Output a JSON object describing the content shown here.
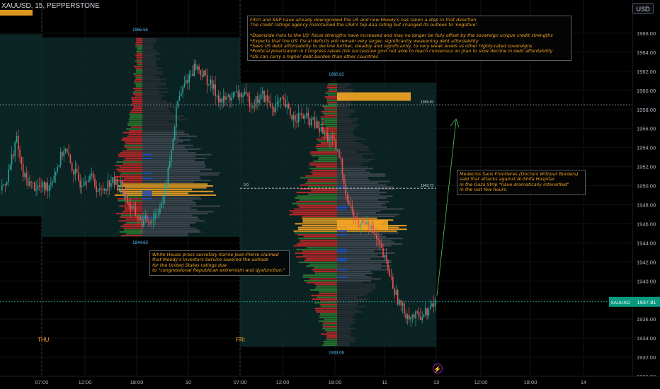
{
  "header": {
    "symbol_line": "XAUUSD, 15, PEPPERSTONE"
  },
  "currency_button": "USD",
  "price_tag": {
    "symbol": "XAUUSD",
    "value": "1937.81"
  },
  "notes": {
    "top": "Fitch and S&P have already downgroded the US and now Moody's has taken a step in that direction.\nThe credit ratings agency maintained the USA's top Aaa rating but changed its outlook to 'negative'.\n\n*Downside risks to the US' fiscal strengths have increased and may no longer be fully offset by the sovereign unique credit strengths\n*Expects that the US' fiscal deficits will remain very larger, significantly weakening debt affordability\n*Sees US debt affordability to decline further, steadily and significantly, to very weak levels vs other highly-rated sovereigns\n*Political polarization in Congress raises risk successive govt not able to reach consensus on plan to slow decline in debt affordability\n*US can carry a higher debt burden than other countries",
    "msf": "Medecins Sans Frontieres (Doctors Without Borders)\nsaid that attacks against Al-Shifa Hospital\nin the Gaza Strip \"have dramatically intensified\"\nin the last few hours.",
    "white_house": "White House press secretary Karine Jean-Pierre claimed\nthat Moody's Investors Service lowered the outlook\nfor the United States ratings due\nto \"congressional Republican extremism and dysfunction.\""
  },
  "icons": {
    "flash": "lightning-icon"
  },
  "chart_data": {
    "type": "candlestick",
    "y_axis": {
      "ticks": [
        1930,
        1932,
        1934,
        1936,
        1938,
        1940,
        1942,
        1944,
        1946,
        1948,
        1950,
        1952,
        1954,
        1956,
        1958,
        1960,
        1962,
        1964,
        1966
      ],
      "labels": [
        "1930.00",
        "1932.00",
        "1934.00",
        "1936.00",
        "1938.00",
        "1940.00",
        "1942.00",
        "1944.00",
        "1946.00",
        "1948.00",
        "1950.00",
        "1952.00",
        "1954.00",
        "1956.00",
        "1958.00",
        "1960.00",
        "1962.00",
        "1964.00",
        "1966.00"
      ],
      "range": [
        1929.6,
        1968.9
      ]
    },
    "x_axis": {
      "labels": [
        "07:00",
        "12:00",
        "18:00",
        "10",
        "07:00",
        "12:00",
        "18:00",
        "11",
        "12:00",
        "18:00",
        "13",
        "12:00",
        "18:00",
        "14"
      ]
    },
    "day_markers": [
      "THU",
      "FRI"
    ],
    "current_price": 1937.81,
    "horizontal_lines": [
      1958.49,
      1949.73
    ],
    "volume_profiles": [
      {
        "high": 1965.56,
        "low": 1944.63,
        "poc": 1949.73
      },
      {
        "high": 1960.82,
        "low": 1933.08,
        "poc": 1946.0,
        "levels": [
          "1958.49",
          "1949.73"
        ],
        "open_label": "0.0"
      }
    ],
    "colors": {
      "up": "#26a69a",
      "down": "#ef5350",
      "poc": "#f5a623",
      "profile_up": "#3c8f3c",
      "profile_down": "#c62828",
      "value_blue": "#2962ff"
    }
  }
}
